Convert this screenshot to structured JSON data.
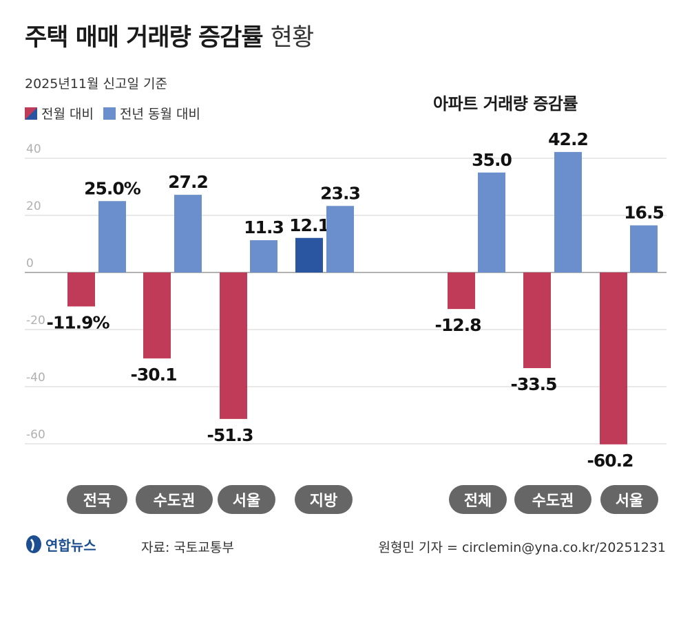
{
  "header": {
    "title_bold": "주택 매매 거래량 증감률",
    "title_light": "현황",
    "subtitle": "2025년11월 신고일 기준"
  },
  "legend": {
    "mom_label": "전월 대비",
    "yoy_label": "전년 동월 대비"
  },
  "apartment_title": "아파트 거래량 증감률",
  "colors": {
    "mom": "#c03b57",
    "yoy": "#6a8fcc",
    "highlight": "#2a55a0",
    "pill": "#666666",
    "grid": "#d0d0d0",
    "axis": "#999999"
  },
  "chart_data": [
    {
      "type": "bar",
      "title": "",
      "categories": [
        "전국",
        "수도권",
        "서울",
        "지방"
      ],
      "series": [
        {
          "name": "전월 대비",
          "values": [
            -11.9,
            -30.1,
            -51.3,
            12.1
          ]
        },
        {
          "name": "전년 동월 대비",
          "values": [
            25.0,
            27.2,
            11.3,
            23.3
          ]
        }
      ],
      "value_labels": {
        "mom": [
          "-11.9%",
          "-30.1",
          "-51.3",
          "12.1"
        ],
        "yoy": [
          "25.0%",
          "27.2",
          "11.3",
          "23.3"
        ]
      },
      "ylim": [
        -60,
        40
      ],
      "yticks": [
        "40",
        "20",
        "0",
        "-20",
        "-40",
        "-60"
      ],
      "grid": true,
      "legend_position": "top-left"
    },
    {
      "type": "bar",
      "title": "아파트 거래량 증감률",
      "categories": [
        "전체",
        "수도권",
        "서울"
      ],
      "series": [
        {
          "name": "전월 대비",
          "values": [
            -12.8,
            -33.5,
            -60.2
          ]
        },
        {
          "name": "전년 동월 대비",
          "values": [
            35.0,
            42.2,
            16.5
          ]
        }
      ],
      "value_labels": {
        "mom": [
          "-12.8",
          "-33.5",
          "-60.2"
        ],
        "yoy": [
          "35.0",
          "42.2",
          "16.5"
        ]
      },
      "ylim": [
        -60,
        40
      ],
      "grid": true
    }
  ],
  "footer": {
    "logo_text": "연합뉴스",
    "source": "자료: 국토교통부",
    "credit": "원형민 기자 = circlemin@yna.co.kr/20251231"
  }
}
